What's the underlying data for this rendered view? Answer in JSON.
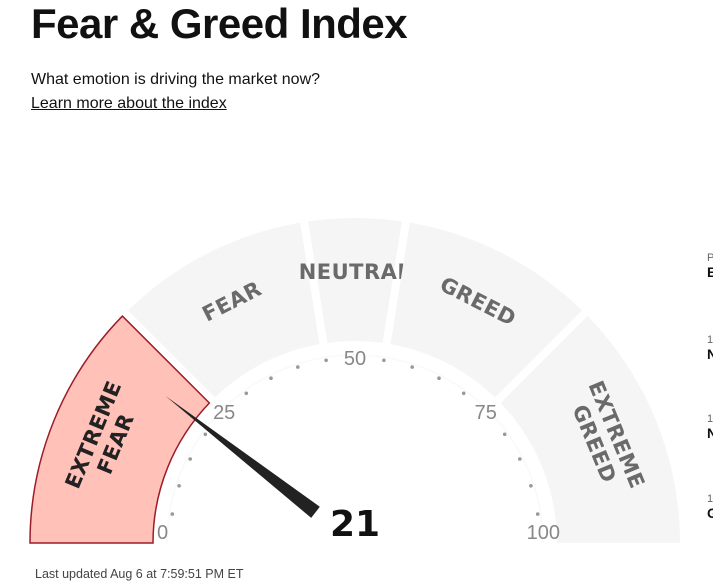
{
  "header": {
    "title": "Fear & Greed Index",
    "subtitle": "What emotion is driving the market now?",
    "learn_more_link": "Learn more about the index"
  },
  "gauge": {
    "value": 21,
    "score_text": "21",
    "active_segment": "extreme-fear",
    "segments": [
      {
        "key": "extreme-fear",
        "lines": [
          "EXTREME",
          "FEAR"
        ],
        "from": 0,
        "to": 25
      },
      {
        "key": "fear",
        "lines": [
          "FEAR"
        ],
        "from": 25,
        "to": 45
      },
      {
        "key": "neutral",
        "lines": [
          "NEUTRAL"
        ],
        "from": 45,
        "to": 55
      },
      {
        "key": "greed",
        "lines": [
          "GREED"
        ],
        "from": 55,
        "to": 75
      },
      {
        "key": "extreme-greed",
        "lines": [
          "EXTREME",
          "GREED"
        ],
        "from": 75,
        "to": 100
      }
    ],
    "tick_labels": [
      {
        "value": 0,
        "text": "0"
      },
      {
        "value": 25,
        "text": "25"
      },
      {
        "value": 50,
        "text": "50"
      },
      {
        "value": 75,
        "text": "75"
      },
      {
        "value": 100,
        "text": "100"
      }
    ],
    "colors": {
      "segment_fill": "#f5f5f5",
      "active_fill": "#ffc1b8",
      "active_stroke": "#9c1c2a",
      "label": "#6a6a6a",
      "active_label": "#222222",
      "needle": "#222222",
      "tick_dot": "#999999"
    }
  },
  "footer": {
    "last_updated": "Last updated Aug 6 at 7:59:51 PM ET"
  },
  "side_panel": {
    "items": [
      {
        "small": "P",
        "big": "E"
      },
      {
        "small": "1",
        "big": "N"
      },
      {
        "small": "1",
        "big": "N"
      },
      {
        "small": "1",
        "big": "G"
      }
    ]
  }
}
